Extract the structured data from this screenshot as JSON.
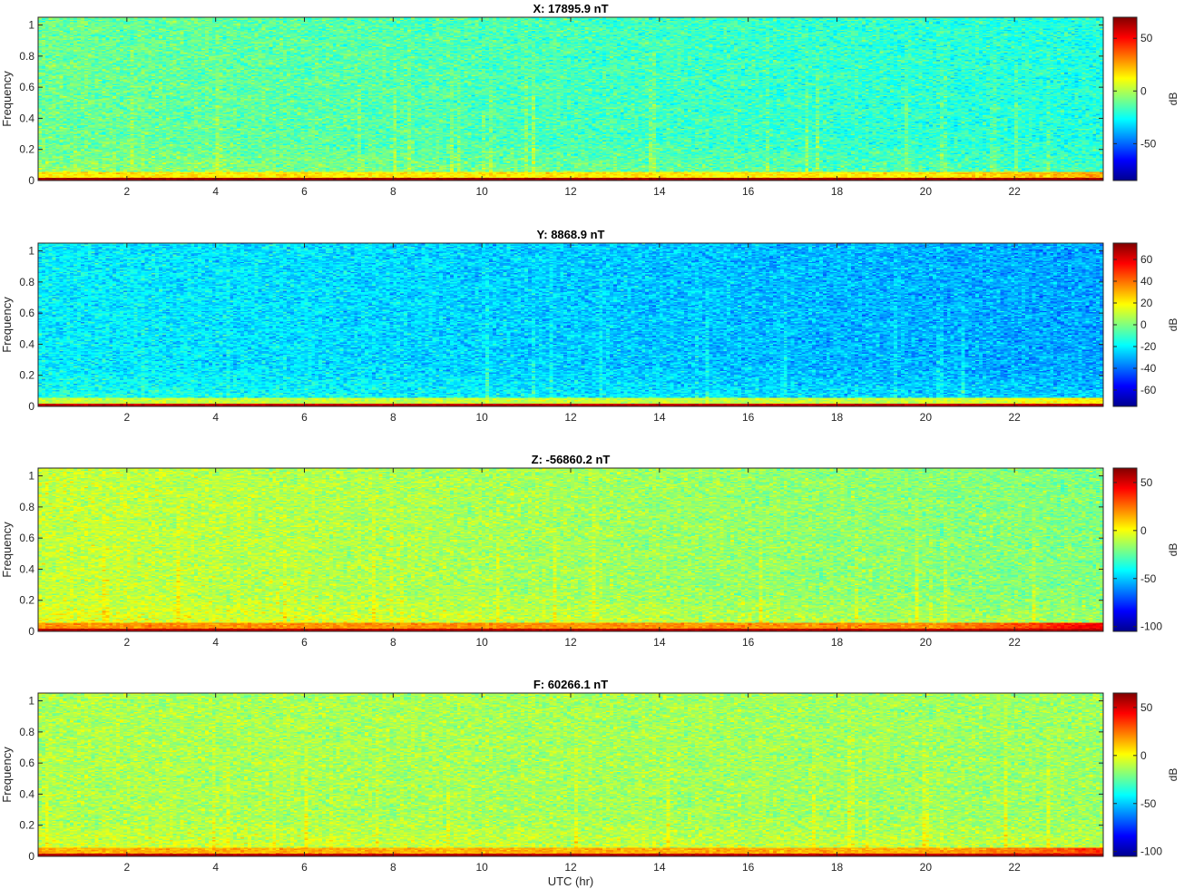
{
  "chart_data": [
    {
      "type": "heatmap",
      "title": "X: 17895.9 nT",
      "xlabel": "",
      "ylabel": "Frequency",
      "xlim": [
        0,
        24
      ],
      "ylim": [
        0,
        1.05
      ],
      "xticks": [
        2,
        4,
        6,
        8,
        10,
        12,
        14,
        16,
        18,
        20,
        22
      ],
      "yticks": [
        0,
        0.2,
        0.4,
        0.6,
        0.8,
        1
      ],
      "colorbar": {
        "label": "dB",
        "range": [
          -85,
          70
        ],
        "ticks": [
          -50,
          0,
          50
        ]
      },
      "colormap": "jet",
      "level_profile": {
        "low_freq_band_db": 65,
        "near_low_db": 15,
        "background_db": -20,
        "early_hours_db": -10,
        "late_hours_db": -22,
        "tail_rise_db": 10
      }
    },
    {
      "type": "heatmap",
      "title": "Y: 8868.9 nT",
      "xlabel": "",
      "ylabel": "Frequency",
      "xlim": [
        0,
        24
      ],
      "ylim": [
        0,
        1.05
      ],
      "xticks": [
        2,
        4,
        6,
        8,
        10,
        12,
        14,
        16,
        18,
        20,
        22
      ],
      "yticks": [
        0,
        0.2,
        0.4,
        0.6,
        0.8,
        1
      ],
      "colorbar": {
        "label": "dB",
        "range": [
          -75,
          75
        ],
        "ticks": [
          -60,
          -40,
          -20,
          0,
          20,
          40,
          60
        ]
      },
      "colormap": "jet",
      "level_profile": {
        "low_freq_band_db": 65,
        "near_low_db": 10,
        "background_db": -25,
        "early_hours_db": -20,
        "late_hours_db": -32,
        "tail_rise_db": 12
      }
    },
    {
      "type": "heatmap",
      "title": "Z: -56860.2 nT",
      "xlabel": "",
      "ylabel": "Frequency",
      "xlim": [
        0,
        24
      ],
      "ylim": [
        0,
        1.05
      ],
      "xticks": [
        2,
        4,
        6,
        8,
        10,
        12,
        14,
        16,
        18,
        20,
        22
      ],
      "yticks": [
        0,
        0.2,
        0.4,
        0.6,
        0.8,
        1
      ],
      "colorbar": {
        "label": "dB",
        "range": [
          -105,
          65
        ],
        "ticks": [
          -100,
          -50,
          0,
          50
        ]
      },
      "colormap": "jet",
      "level_profile": {
        "low_freq_band_db": 55,
        "near_low_db": 20,
        "background_db": -20,
        "early_hours_db": -8,
        "late_hours_db": -20,
        "tail_rise_db": 25
      }
    },
    {
      "type": "heatmap",
      "title": "F: 60266.1 nT",
      "xlabel": "UTC (hr)",
      "ylabel": "Frequency",
      "xlim": [
        0,
        24
      ],
      "ylim": [
        0,
        1.05
      ],
      "xticks": [
        2,
        4,
        6,
        8,
        10,
        12,
        14,
        16,
        18,
        20,
        22
      ],
      "yticks": [
        0,
        0.2,
        0.4,
        0.6,
        0.8,
        1
      ],
      "colorbar": {
        "label": "dB",
        "range": [
          -105,
          65
        ],
        "ticks": [
          -100,
          -50,
          0,
          50
        ]
      },
      "colormap": "jet",
      "level_profile": {
        "low_freq_band_db": 55,
        "near_low_db": 15,
        "background_db": -15,
        "early_hours_db": -12,
        "late_hours_db": -15,
        "tail_rise_db": 20
      }
    }
  ]
}
